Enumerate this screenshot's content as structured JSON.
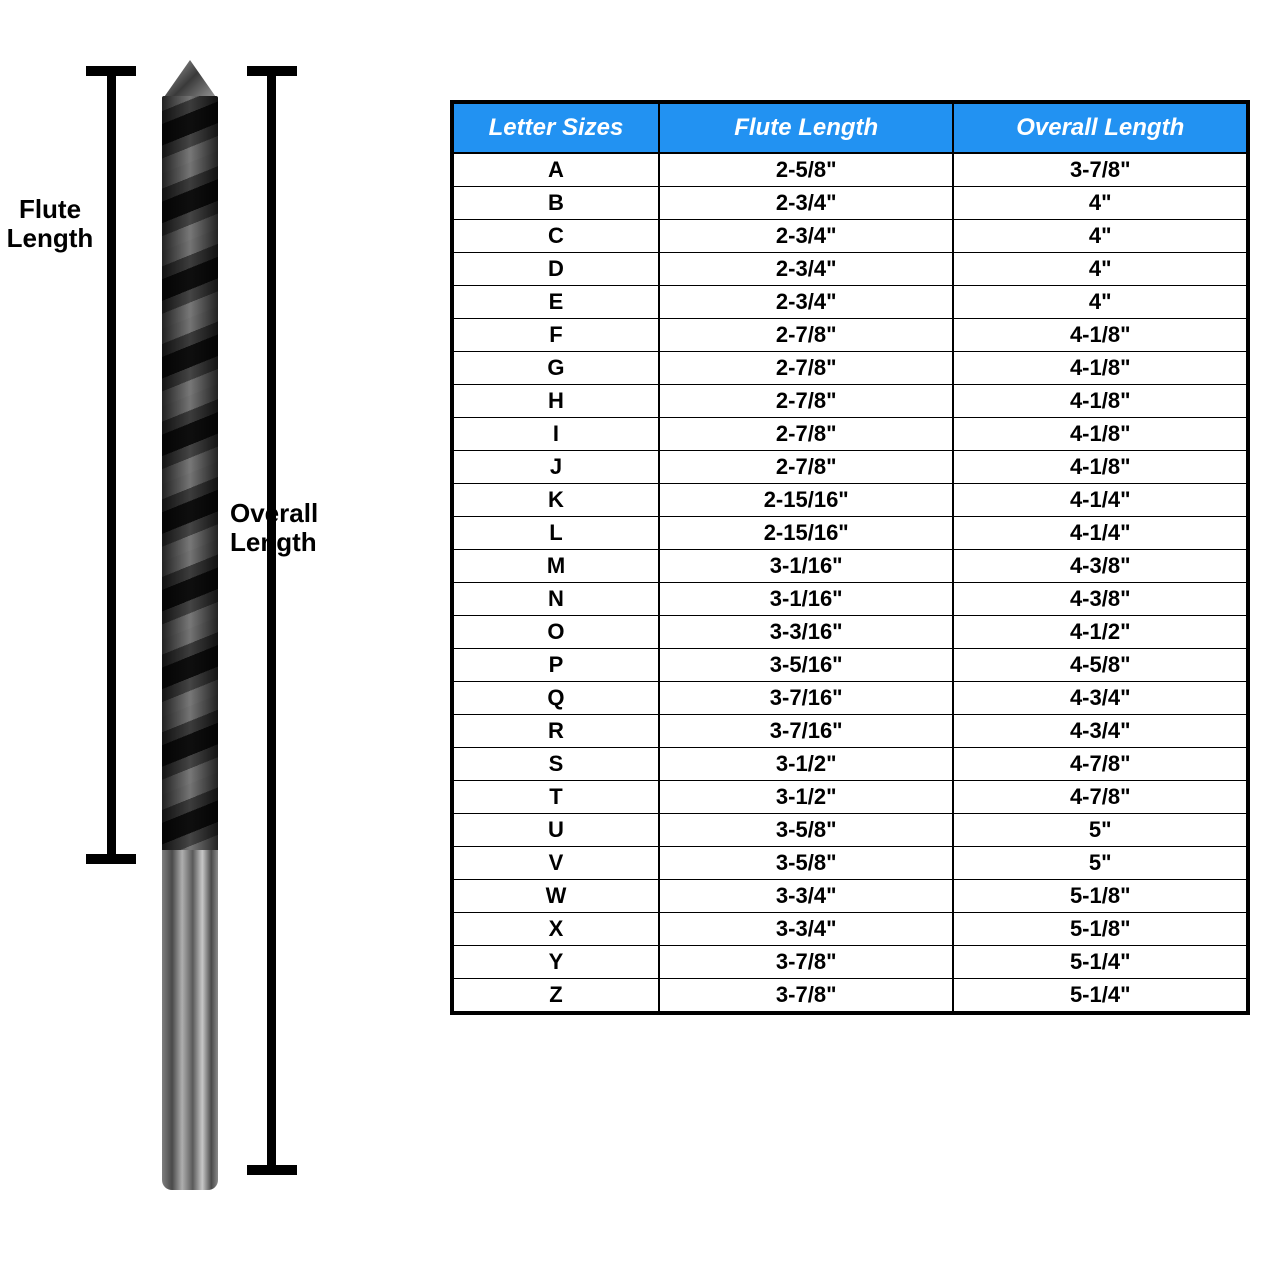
{
  "diagram": {
    "flute_label_line1": "Flute",
    "flute_label_line2": "Length",
    "overall_label_line1": "Overall",
    "overall_label_line2": "Length"
  },
  "table": {
    "header_bg_color": "#2292f2",
    "header_text_color": "#ffffff",
    "border_color": "#000000",
    "cell_bg_color": "#ffffff",
    "cell_text_color": "#000000",
    "header_fontsize": 24,
    "cell_fontsize": 22,
    "col_widths_percent": [
      26,
      37,
      37
    ],
    "columns": [
      "Letter Sizes",
      "Flute Length",
      "Overall Length"
    ],
    "rows": [
      [
        "A",
        "2-5/8\"",
        "3-7/8\""
      ],
      [
        "B",
        "2-3/4\"",
        "4\""
      ],
      [
        "C",
        "2-3/4\"",
        "4\""
      ],
      [
        "D",
        "2-3/4\"",
        "4\""
      ],
      [
        "E",
        "2-3/4\"",
        "4\""
      ],
      [
        "F",
        "2-7/8\"",
        "4-1/8\""
      ],
      [
        "G",
        "2-7/8\"",
        "4-1/8\""
      ],
      [
        "H",
        "2-7/8\"",
        "4-1/8\""
      ],
      [
        "I",
        "2-7/8\"",
        "4-1/8\""
      ],
      [
        "J",
        "2-7/8\"",
        "4-1/8\""
      ],
      [
        "K",
        "2-15/16\"",
        "4-1/4\""
      ],
      [
        "L",
        "2-15/16\"",
        "4-1/4\""
      ],
      [
        "M",
        "3-1/16\"",
        "4-3/8\""
      ],
      [
        "N",
        "3-1/16\"",
        "4-3/8\""
      ],
      [
        "O",
        "3-3/16\"",
        "4-1/2\""
      ],
      [
        "P",
        "3-5/16\"",
        "4-5/8\""
      ],
      [
        "Q",
        "3-7/16\"",
        "4-3/4\""
      ],
      [
        "R",
        "3-7/16\"",
        "4-3/4\""
      ],
      [
        "S",
        "3-1/2\"",
        "4-7/8\""
      ],
      [
        "T",
        "3-1/2\"",
        "4-7/8\""
      ],
      [
        "U",
        "3-5/8\"",
        "5\""
      ],
      [
        "V",
        "3-5/8\"",
        "5\""
      ],
      [
        "W",
        "3-3/4\"",
        "5-1/8\""
      ],
      [
        "X",
        "3-3/4\"",
        "5-1/8\""
      ],
      [
        "Y",
        "3-7/8\"",
        "5-1/4\""
      ],
      [
        "Z",
        "3-7/8\"",
        "5-1/4\""
      ]
    ]
  }
}
